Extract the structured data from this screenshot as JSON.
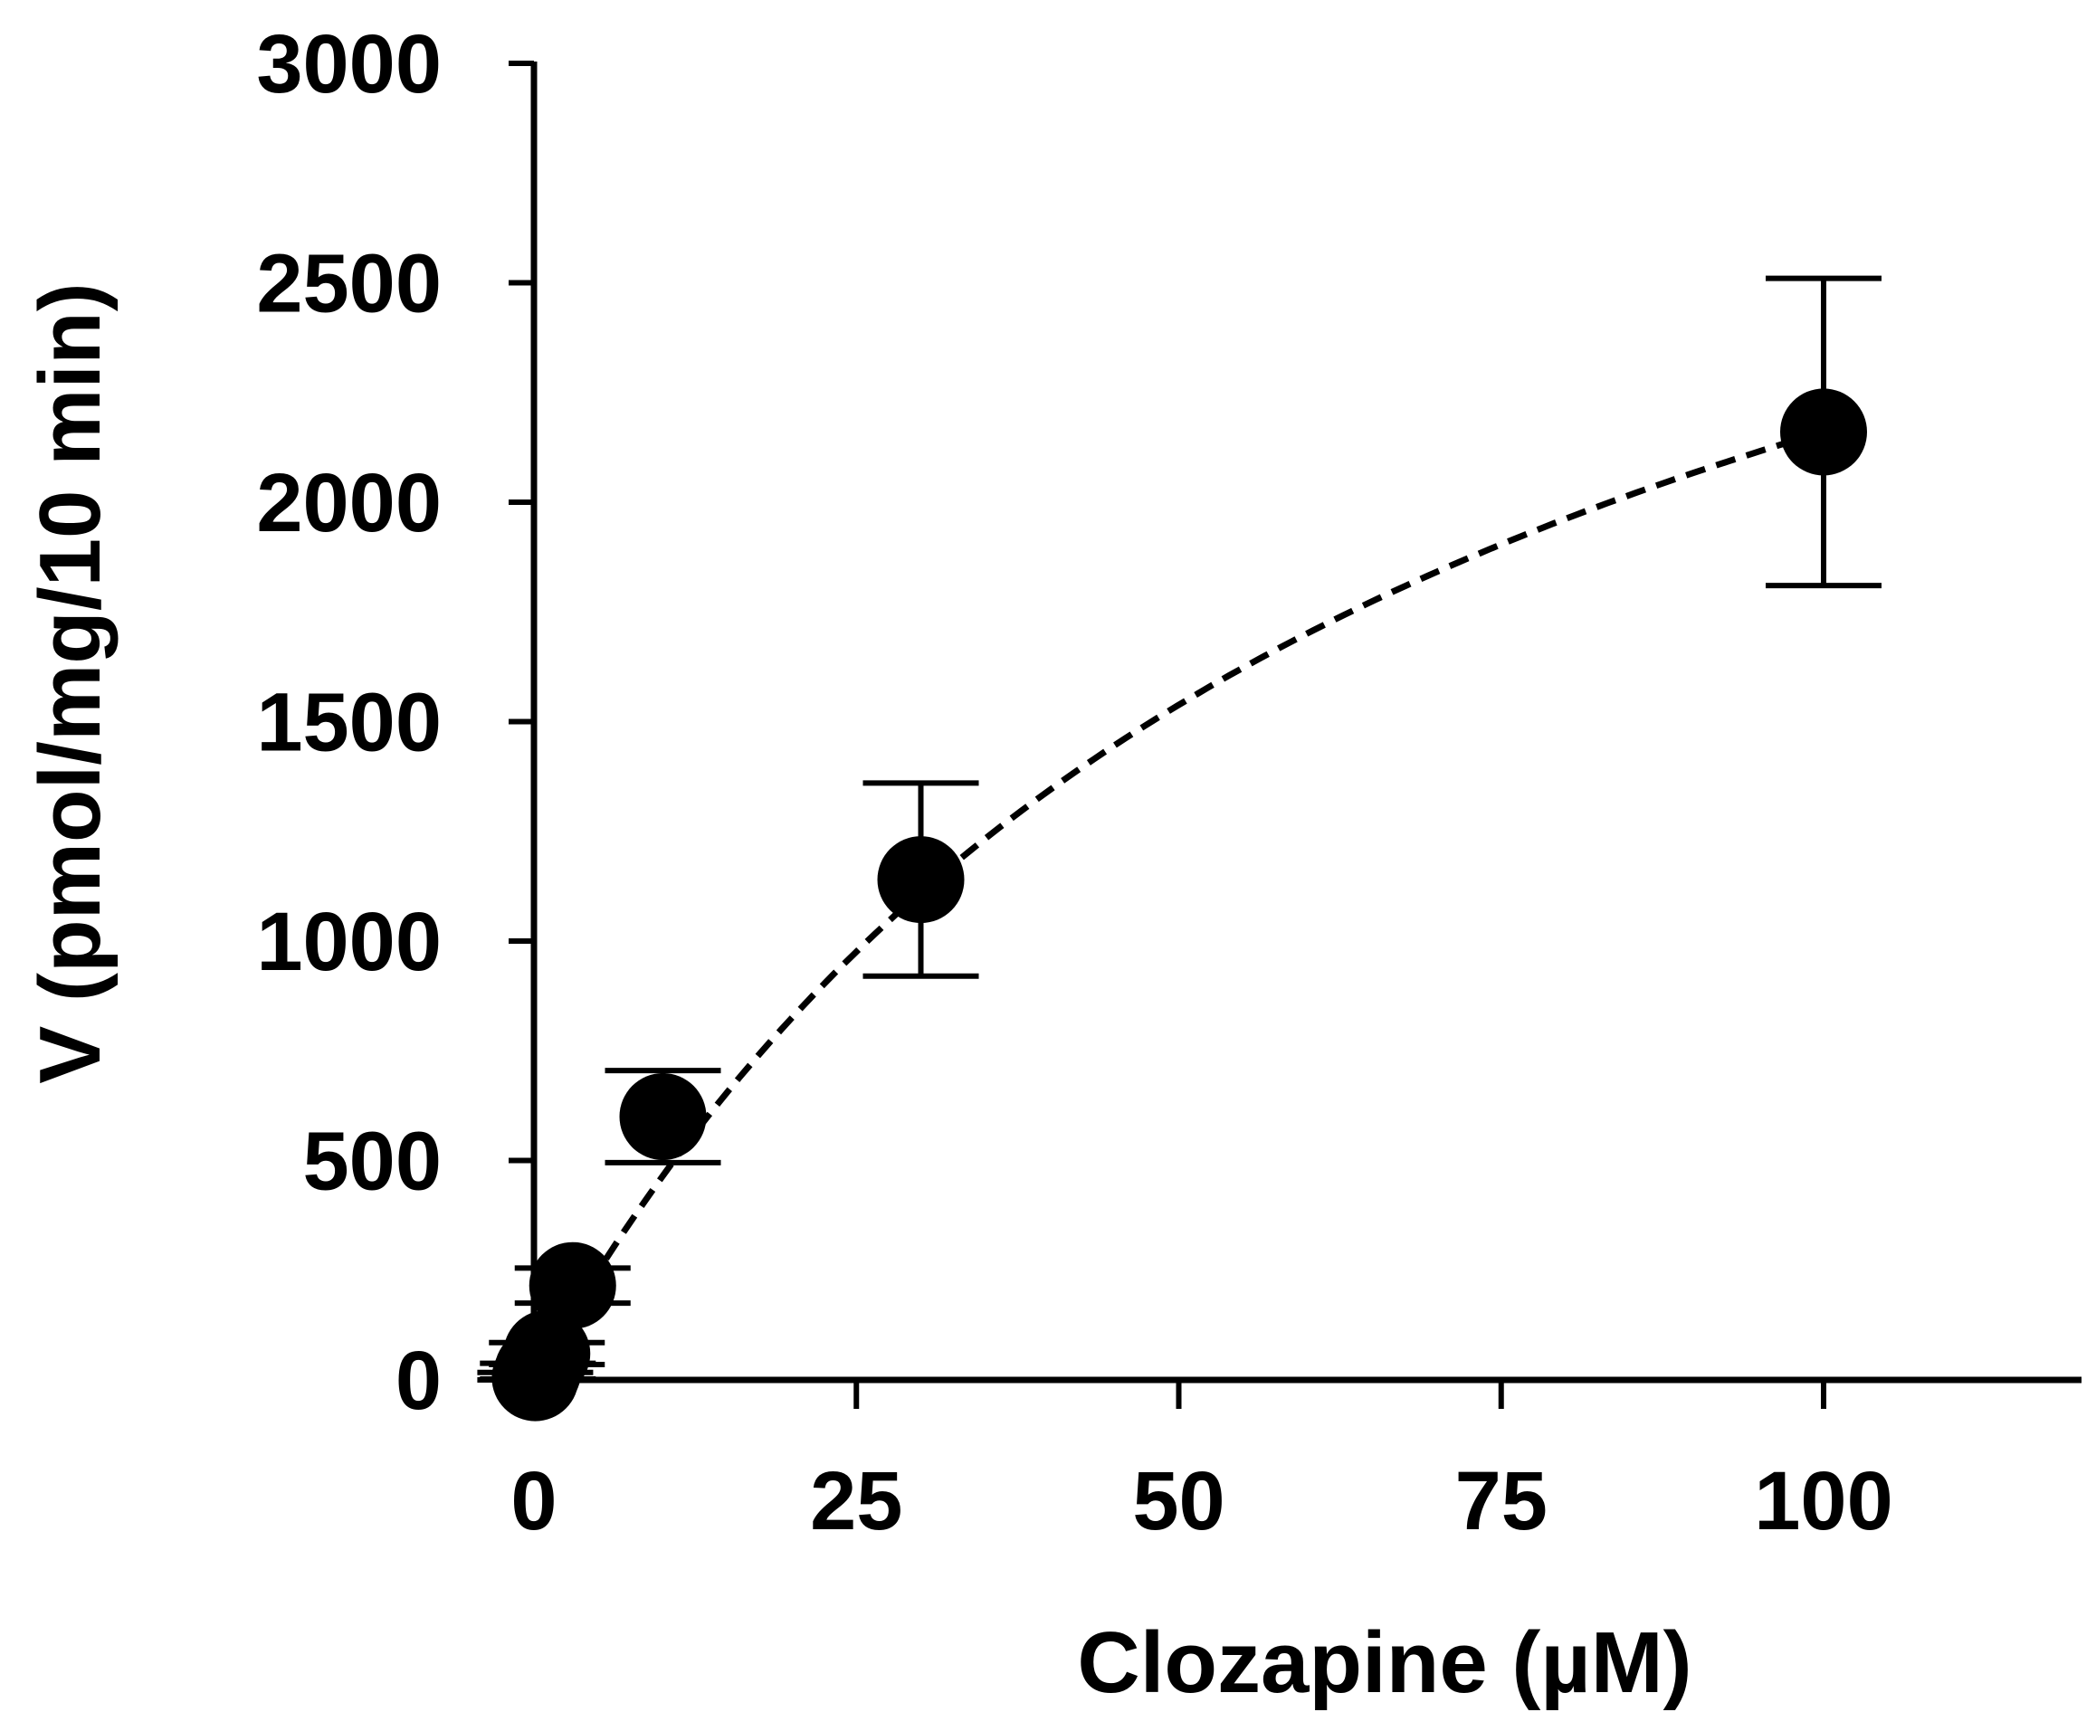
{
  "chart_data": {
    "type": "scatter",
    "title": "",
    "xlabel": "Clozapine (µM)",
    "ylabel": "V (pmol/mg/10 min)",
    "xlim": [
      0,
      120
    ],
    "ylim": [
      0,
      3000
    ],
    "x_ticks": [
      0,
      25,
      50,
      75,
      100
    ],
    "y_ticks": [
      0,
      500,
      1000,
      1500,
      2000,
      2500,
      3000
    ],
    "x_tick_labels": [
      "0",
      "25",
      "50",
      "75",
      "100"
    ],
    "y_tick_labels": [
      "0",
      "500",
      "1000",
      "1500",
      "2000",
      "2500",
      "3000"
    ],
    "grid": false,
    "legend": "none",
    "series": [
      {
        "style": "markers with error bars",
        "marker_color": "#000000",
        "points": [
          {
            "x": 0.1,
            "y": 5,
            "err": 12
          },
          {
            "x": 0.3,
            "y": 20,
            "err": 18
          },
          {
            "x": 1,
            "y": 60,
            "err": 25
          },
          {
            "x": 3,
            "y": 215,
            "err": 40
          },
          {
            "x": 10,
            "y": 600,
            "err": 105
          },
          {
            "x": 30,
            "y": 1140,
            "err": 220
          },
          {
            "x": 100,
            "y": 2160,
            "err": 350
          }
        ]
      },
      {
        "style": "dashed fit curve",
        "model": "michaelis-menten",
        "vmax": 3630,
        "km": 68,
        "x_range": [
          3,
          100
        ],
        "line_color": "#000000"
      }
    ]
  }
}
